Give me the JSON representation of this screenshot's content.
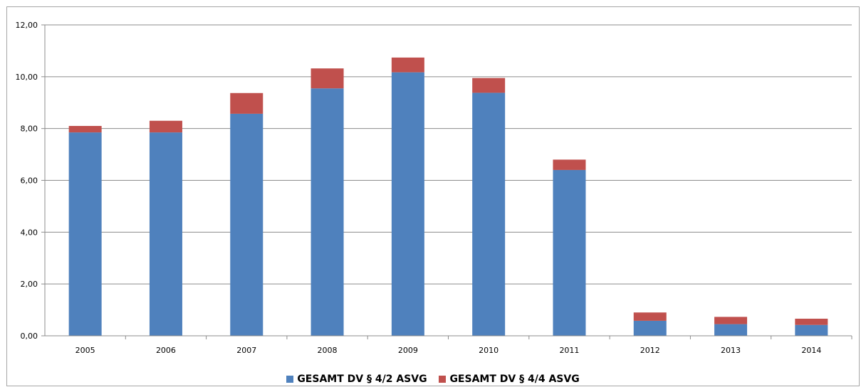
{
  "chart_data": {
    "type": "bar",
    "stacked": true,
    "categories": [
      "2005",
      "2006",
      "2007",
      "2008",
      "2009",
      "2010",
      "2011",
      "2012",
      "2013",
      "2014"
    ],
    "series": [
      {
        "name": "GESAMT DV § 4/2 ASVG",
        "color": "#4f81bd",
        "values": [
          7.85,
          7.85,
          8.57,
          9.55,
          10.17,
          9.38,
          6.4,
          0.58,
          0.45,
          0.42
        ]
      },
      {
        "name": "GESAMT DV § 4/4 ASVG",
        "color": "#c0504d",
        "values": [
          0.25,
          0.45,
          0.8,
          0.77,
          0.57,
          0.57,
          0.4,
          0.32,
          0.28,
          0.24
        ]
      }
    ],
    "ylim": [
      0,
      12
    ],
    "yticks": [
      "0,00",
      "2,00",
      "4,00",
      "6,00",
      "8,00",
      "10,00",
      "12,00"
    ],
    "grid": true,
    "legend_position": "bottom"
  }
}
